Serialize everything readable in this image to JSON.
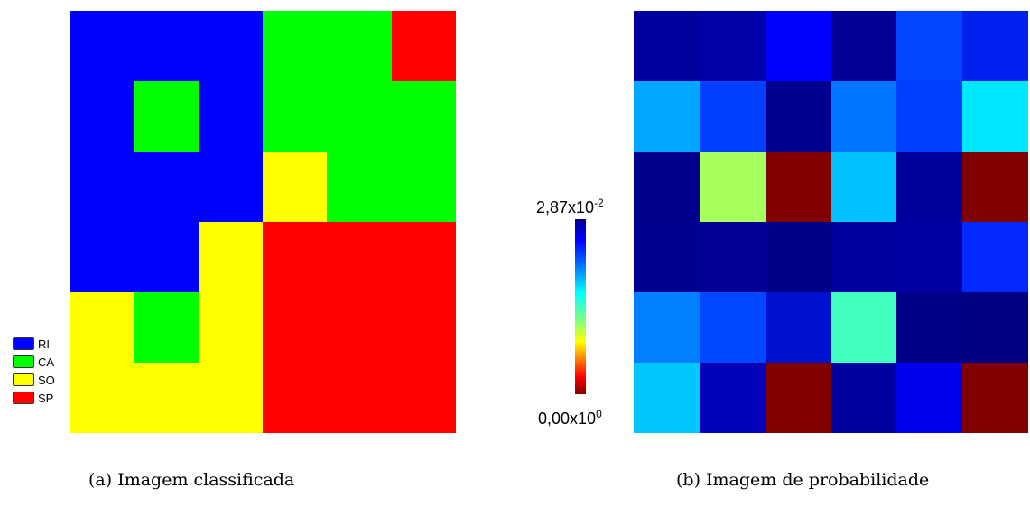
{
  "colors": {
    "RI": "#0000ff",
    "CA": "#00ff00",
    "SO": "#ffff00",
    "SP": "#ff0000"
  },
  "classified": {
    "rows": [
      [
        "RI",
        "RI",
        "RI",
        "CA",
        "CA",
        "SP"
      ],
      [
        "RI",
        "CA",
        "RI",
        "CA",
        "CA",
        "CA"
      ],
      [
        "RI",
        "RI",
        "RI",
        "SO",
        "CA",
        "CA"
      ],
      [
        "RI",
        "RI",
        "SO",
        "SP",
        "SP",
        "SP"
      ],
      [
        "SO",
        "CA",
        "SO",
        "SP",
        "SP",
        "SP"
      ],
      [
        "SO",
        "SO",
        "SO",
        "SP",
        "SP",
        "SP"
      ]
    ]
  },
  "legend": [
    {
      "label": "RI",
      "color": "#0000ff"
    },
    {
      "label": "CA",
      "color": "#00ff00"
    },
    {
      "label": "SO",
      "color": "#ffff00"
    },
    {
      "label": "SP",
      "color": "#ff0000"
    }
  ],
  "probability": {
    "colors": [
      [
        "#00009c",
        "#0000a8",
        "#0000ff",
        "#000096",
        "#0046ff",
        "#0020f0"
      ],
      [
        "#00a6ff",
        "#0040ff",
        "#000090",
        "#0075ff",
        "#0040ff",
        "#00e8ff"
      ],
      [
        "#00008c",
        "#a6ff5a",
        "#800000",
        "#00c2ff",
        "#00009a",
        "#800000"
      ],
      [
        "#00008e",
        "#000094",
        "#000088",
        "#00009e",
        "#0000a0",
        "#0028ff"
      ],
      [
        "#0080ff",
        "#0048ff",
        "#0010d0",
        "#40ffc0",
        "#000088",
        "#000080"
      ],
      [
        "#00c8ff",
        "#0000b8",
        "#800000",
        "#00009c",
        "#0000ee",
        "#800000"
      ]
    ]
  },
  "colorbar": {
    "max_base": "2,87x10",
    "max_exp": "-2",
    "min_base": "0,00x10",
    "min_exp": "0"
  },
  "captions": {
    "a": "(a) Imagem classificada",
    "b": "(b) Imagem de probabilidade"
  }
}
